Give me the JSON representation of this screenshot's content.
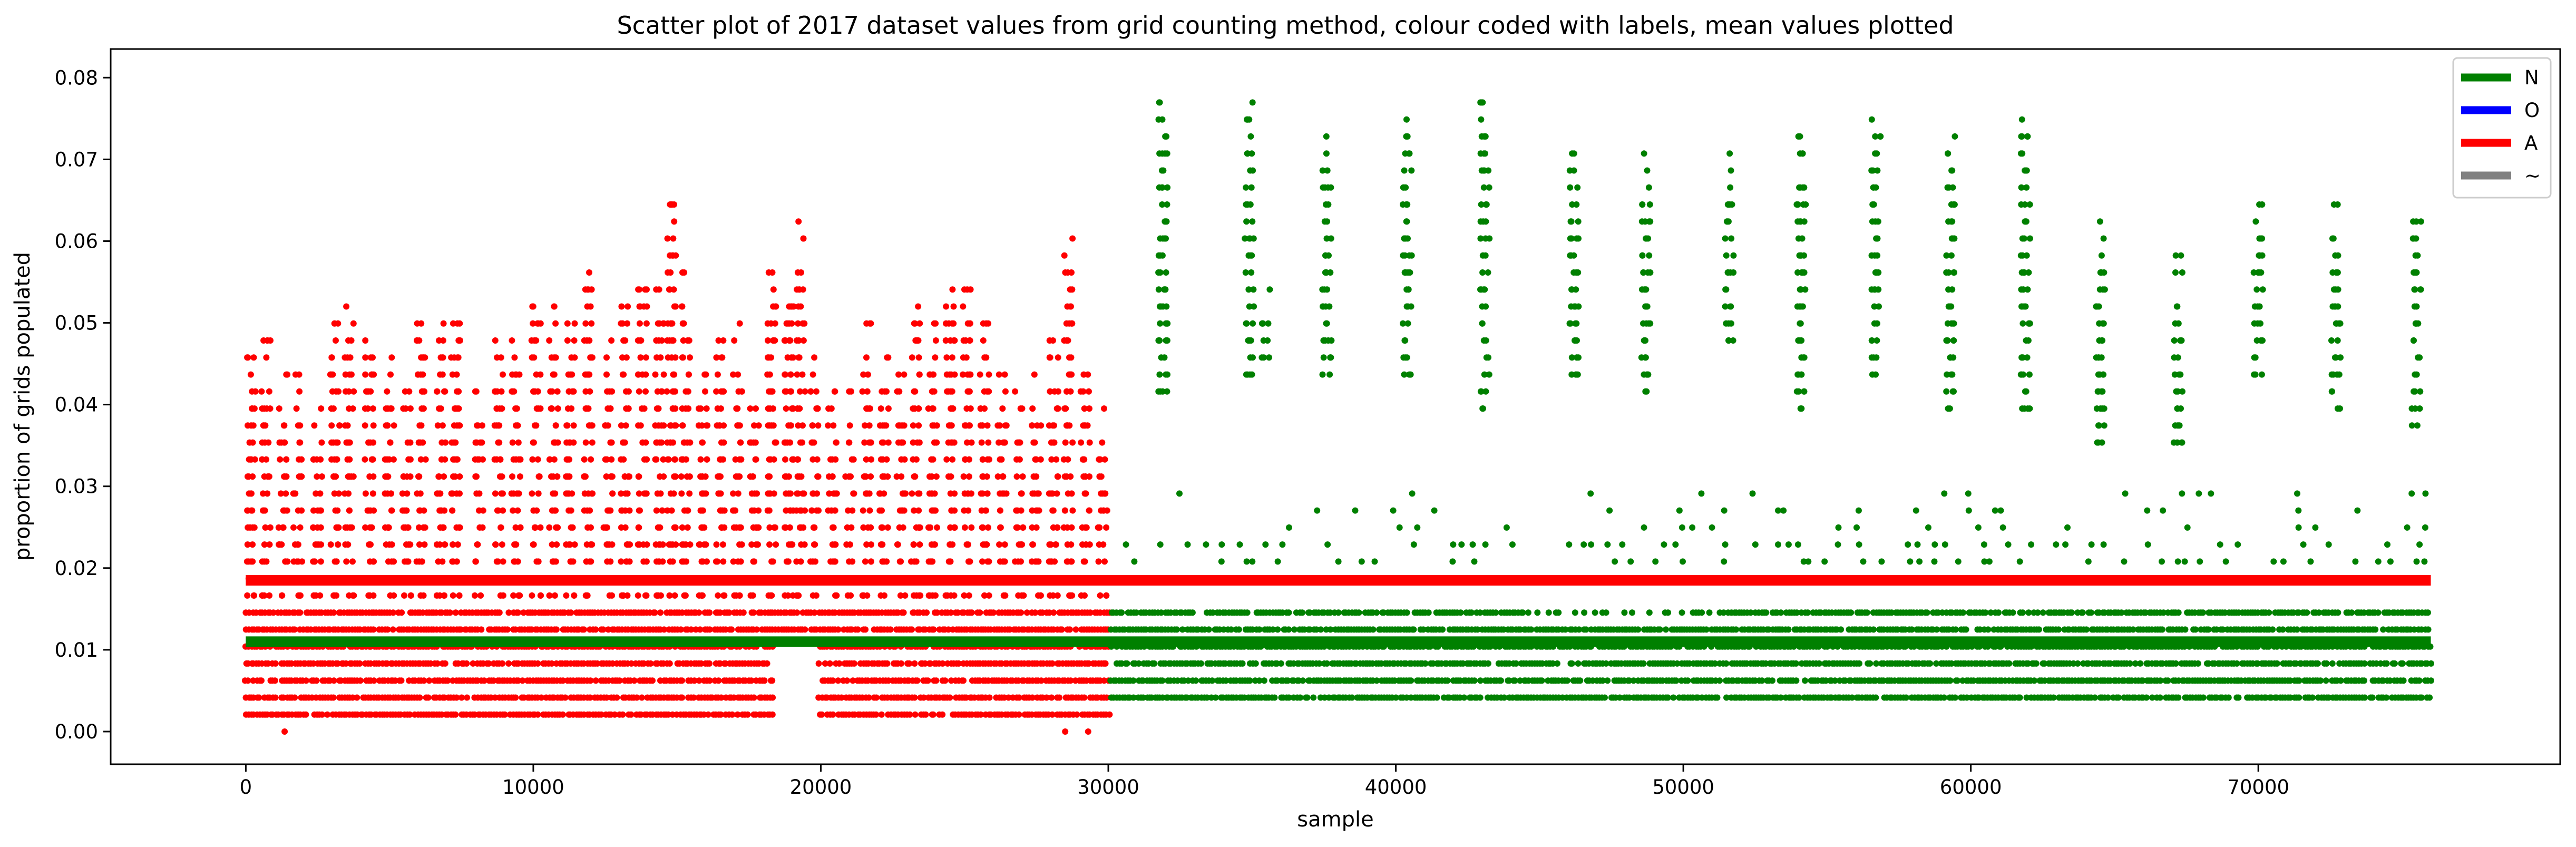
{
  "chart_data": {
    "type": "scatter",
    "title": "Scatter plot of 2017 dataset values from grid counting method, colour coded with labels, mean values plotted",
    "xlabel": "sample",
    "ylabel": "proportion of grids populated",
    "xlim": [
      -4700,
      80500
    ],
    "ylim": [
      -0.004,
      0.0835
    ],
    "x_ticks": [
      0,
      10000,
      20000,
      30000,
      40000,
      50000,
      60000,
      70000
    ],
    "x_tick_labels": [
      "0",
      "10000",
      "20000",
      "30000",
      "40000",
      "50000",
      "60000",
      "70000"
    ],
    "y_ticks": [
      0.0,
      0.01,
      0.02,
      0.03,
      0.04,
      0.05,
      0.06,
      0.07,
      0.08
    ],
    "y_tick_labels": [
      "0.00",
      "0.01",
      "0.02",
      "0.03",
      "0.04",
      "0.05",
      "0.06",
      "0.07",
      "0.08"
    ],
    "grid": false,
    "legend_position": "top-right",
    "legend": [
      {
        "label": "N",
        "color": "#008000"
      },
      {
        "label": "O",
        "color": "#0000ff"
      },
      {
        "label": "A",
        "color": "#ff0000"
      },
      {
        "label": "~",
        "color": "#808080"
      }
    ],
    "value_step": 0.00208,
    "series": [
      {
        "name": "A",
        "color": "#ff0000",
        "x_range": [
          0,
          30100
        ],
        "base_max": 0.0166,
        "clusters": [
          {
            "x": 200,
            "max": 0.048
          },
          {
            "x": 700,
            "max": 0.048
          },
          {
            "x": 1300,
            "max": 0.044
          },
          {
            "x": 1800,
            "max": 0.044
          },
          {
            "x": 2500,
            "max": 0.04
          },
          {
            "x": 3100,
            "max": 0.05
          },
          {
            "x": 3600,
            "max": 0.052
          },
          {
            "x": 4300,
            "max": 0.05
          },
          {
            "x": 5000,
            "max": 0.046
          },
          {
            "x": 5600,
            "max": 0.042
          },
          {
            "x": 6100,
            "max": 0.054
          },
          {
            "x": 6800,
            "max": 0.05
          },
          {
            "x": 7300,
            "max": 0.054
          },
          {
            "x": 8100,
            "max": 0.042
          },
          {
            "x": 8800,
            "max": 0.048
          },
          {
            "x": 9400,
            "max": 0.05
          },
          {
            "x": 10100,
            "max": 0.056
          },
          {
            "x": 10700,
            "max": 0.052
          },
          {
            "x": 11300,
            "max": 0.05
          },
          {
            "x": 11900,
            "max": 0.058
          },
          {
            "x": 12600,
            "max": 0.048
          },
          {
            "x": 13200,
            "max": 0.052
          },
          {
            "x": 13800,
            "max": 0.058
          },
          {
            "x": 14400,
            "max": 0.056
          },
          {
            "x": 14800,
            "max": 0.0665
          },
          {
            "x": 15300,
            "max": 0.058
          },
          {
            "x": 15900,
            "max": 0.044
          },
          {
            "x": 16500,
            "max": 0.048
          },
          {
            "x": 17100,
            "max": 0.05
          },
          {
            "x": 17700,
            "max": 0.046
          },
          {
            "x": 18300,
            "max": 0.058
          },
          {
            "x": 18900,
            "max": 0.058
          },
          {
            "x": 19300,
            "max": 0.0625
          },
          {
            "x": 19800,
            "max": 0.048
          },
          {
            "x": 20400,
            "max": 0.044
          },
          {
            "x": 21000,
            "max": 0.042
          },
          {
            "x": 21600,
            "max": 0.05
          },
          {
            "x": 22200,
            "max": 0.048
          },
          {
            "x": 22800,
            "max": 0.044
          },
          {
            "x": 23300,
            "max": 0.056
          },
          {
            "x": 23900,
            "max": 0.05
          },
          {
            "x": 24500,
            "max": 0.058
          },
          {
            "x": 25100,
            "max": 0.056
          },
          {
            "x": 25700,
            "max": 0.05
          },
          {
            "x": 26300,
            "max": 0.044
          },
          {
            "x": 26900,
            "max": 0.042
          },
          {
            "x": 27500,
            "max": 0.044
          },
          {
            "x": 28100,
            "max": 0.048
          },
          {
            "x": 28600,
            "max": 0.0605
          },
          {
            "x": 29200,
            "max": 0.044
          },
          {
            "x": 29800,
            "max": 0.04
          }
        ],
        "gaps": [
          {
            "x_range": [
              18400,
              19900
            ],
            "y_range": [
              0.0,
              0.0115
            ]
          },
          {
            "x_range": [
              20600,
              21300
            ],
            "y_range": [
              0.0,
              0.002
            ]
          }
        ],
        "outliers": [
          {
            "x": 1350,
            "y": 0.0
          },
          {
            "x": 28500,
            "y": 0.0
          },
          {
            "x": 29300,
            "y": 0.0
          }
        ],
        "mean": 0.0185,
        "mean_x_range": [
          0,
          76000
        ]
      },
      {
        "name": "N",
        "color": "#008000",
        "x_range": [
          30100,
          76000
        ],
        "base_max": 0.0166,
        "base_min": 0.0021,
        "base_gap_x_range": [
          44500,
          51200
        ],
        "clusters": [
          {
            "x": 31900,
            "min": 0.0415,
            "max": 0.077
          },
          {
            "x": 34900,
            "min": 0.0435,
            "max": 0.077
          },
          {
            "x": 35500,
            "min": 0.0437,
            "max": 0.056
          },
          {
            "x": 37600,
            "min": 0.0417,
            "max": 0.073
          },
          {
            "x": 40400,
            "min": 0.0417,
            "max": 0.075
          },
          {
            "x": 43100,
            "min": 0.0375,
            "max": 0.077
          },
          {
            "x": 46200,
            "min": 0.0417,
            "max": 0.071
          },
          {
            "x": 48700,
            "min": 0.0415,
            "max": 0.071
          },
          {
            "x": 51600,
            "min": 0.046,
            "max": 0.071
          },
          {
            "x": 54100,
            "min": 0.0395,
            "max": 0.073
          },
          {
            "x": 56700,
            "min": 0.0417,
            "max": 0.075
          },
          {
            "x": 59300,
            "min": 0.0375,
            "max": 0.073
          },
          {
            "x": 61900,
            "min": 0.0395,
            "max": 0.079
          },
          {
            "x": 64500,
            "min": 0.0335,
            "max": 0.0625
          },
          {
            "x": 67200,
            "min": 0.0335,
            "max": 0.0585
          },
          {
            "x": 70000,
            "min": 0.0435,
            "max": 0.0665
          },
          {
            "x": 72700,
            "min": 0.0395,
            "max": 0.0645
          },
          {
            "x": 75500,
            "min": 0.0355,
            "max": 0.0625
          }
        ],
        "mid_band": {
          "min": 0.0187,
          "max": 0.0293
        },
        "mean": 0.011,
        "mean_x_range": [
          0,
          76000
        ]
      }
    ]
  }
}
